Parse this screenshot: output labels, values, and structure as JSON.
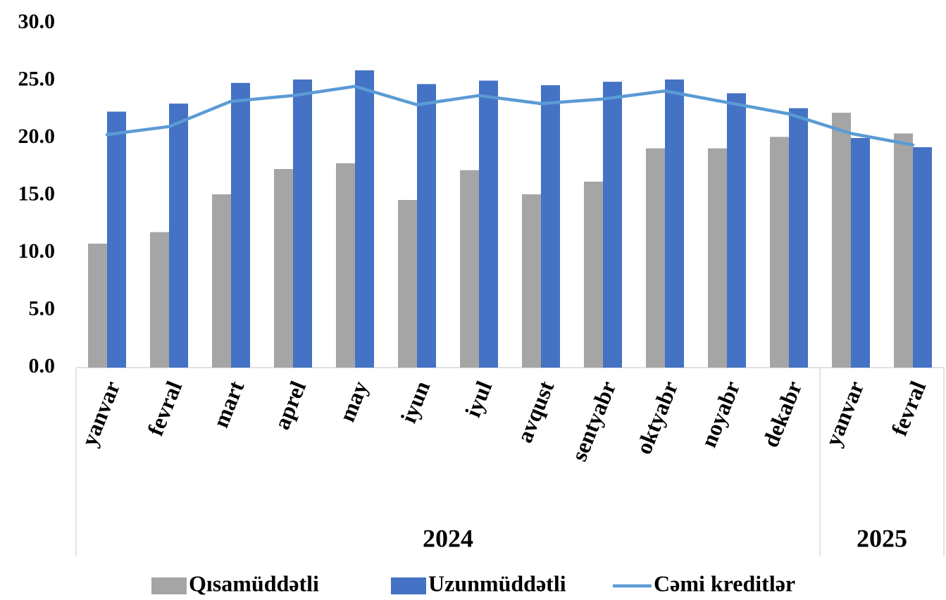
{
  "chart_data": {
    "type": "bar",
    "categories": [
      "yanvar",
      "fevral",
      "mart",
      "aprel",
      "may",
      "iyun",
      "iyul",
      "avqust",
      "sentyabr",
      "oktyabr",
      "noyabr",
      "dekabr",
      "yanvar",
      "fevral"
    ],
    "x_groups": [
      {
        "label": "2024",
        "size": 12
      },
      {
        "label": "2025",
        "size": 2
      }
    ],
    "series": [
      {
        "name": "Qısamüddətli",
        "type": "bar",
        "color": "#a5a5a5",
        "values": [
          10.8,
          11.8,
          15.1,
          17.3,
          17.8,
          14.6,
          17.2,
          15.1,
          16.2,
          19.1,
          19.1,
          20.1,
          22.2,
          20.4
        ]
      },
      {
        "name": "Uzunmüddətli",
        "type": "bar",
        "color": "#4472c4",
        "values": [
          22.3,
          23.0,
          24.8,
          25.1,
          25.9,
          24.7,
          25.0,
          24.6,
          24.9,
          25.1,
          23.9,
          22.6,
          20.0,
          19.2
        ]
      },
      {
        "name": "Cəmi kreditlər",
        "type": "line",
        "color": "#5b9bd5",
        "values": [
          20.3,
          21.0,
          23.2,
          23.7,
          24.5,
          22.9,
          23.7,
          23.0,
          23.4,
          24.1,
          23.1,
          22.1,
          20.4,
          19.4
        ]
      }
    ],
    "ylim": [
      0,
      30
    ],
    "yticks": [
      {
        "value": 0,
        "label": "0.0"
      },
      {
        "value": 5,
        "label": "5.0"
      },
      {
        "value": 10,
        "label": "10.0"
      },
      {
        "value": 15,
        "label": "15.0"
      },
      {
        "value": 20,
        "label": "20.0"
      },
      {
        "value": 25,
        "label": "25.0"
      },
      {
        "value": 30,
        "label": "30.0"
      }
    ],
    "legend": "bottom"
  }
}
